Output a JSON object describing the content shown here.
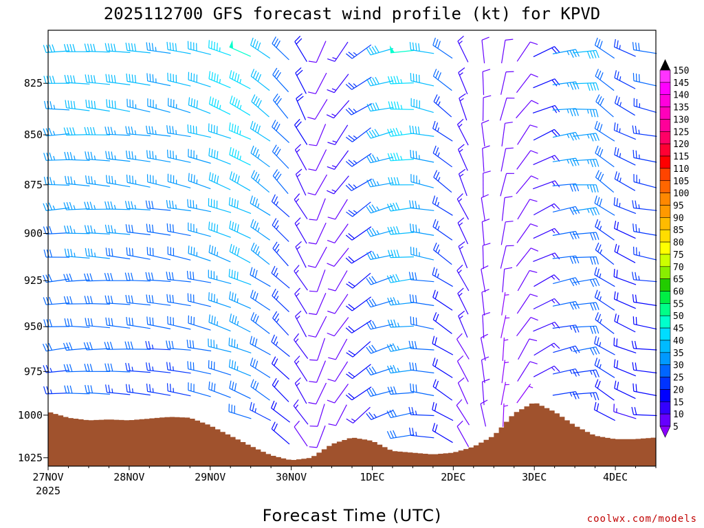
{
  "chart_data": {
    "type": "wind_barb_profile",
    "title": "2025112700 GFS forecast wind profile (kt) for KPVD",
    "xlabel": "Forecast Time (UTC)",
    "ylabel": "",
    "credit": "coolwx.com/models",
    "x_ticks": [
      "27NOV",
      "28NOV",
      "29NOV",
      "30NOV",
      "1DEC",
      "2DEC",
      "3DEC",
      "4DEC"
    ],
    "x_year": "2025",
    "x_range_days": [
      0,
      7.5
    ],
    "y_ticks": [
      825,
      850,
      875,
      900,
      925,
      950,
      975,
      1000,
      1025
    ],
    "y_range_hpa": [
      1030,
      800
    ],
    "colorbar_label_values": [
      5,
      10,
      15,
      20,
      25,
      30,
      35,
      40,
      45,
      50,
      55,
      60,
      65,
      70,
      75,
      80,
      85,
      90,
      95,
      100,
      105,
      110,
      115,
      120,
      125,
      130,
      135,
      140,
      145,
      150
    ],
    "colorbar_colors": [
      "#8a00ff",
      "#6600ff",
      "#3300ff",
      "#0000ff",
      "#0033ff",
      "#0066ff",
      "#0099ff",
      "#00bbff",
      "#00ddff",
      "#00ffcc",
      "#00ff88",
      "#00ee44",
      "#22cc00",
      "#88ee00",
      "#ccff00",
      "#ffff00",
      "#ffdd00",
      "#ffbb00",
      "#ff9900",
      "#ff8800",
      "#ff6600",
      "#ff4400",
      "#ff0000",
      "#ff0033",
      "#ff0066",
      "#ff0099",
      "#ff00bb",
      "#ff00dd",
      "#ff00ff",
      "#ff33ff"
    ],
    "colorbar_top_color": "#000000",
    "terrain_color": "#a0522d",
    "surface_pressure_series": {
      "x_days": [
        0.0,
        0.25,
        0.5,
        0.75,
        1.0,
        1.25,
        1.5,
        1.75,
        2.0,
        2.25,
        2.5,
        2.75,
        3.0,
        3.25,
        3.5,
        3.75,
        4.0,
        4.25,
        4.5,
        4.75,
        5.0,
        5.25,
        5.5,
        5.75,
        6.0,
        6.25,
        6.5,
        6.75,
        7.0,
        7.25,
        7.5
      ],
      "p_hpa": [
        998.0,
        1001.5,
        1003.0,
        1002.5,
        1003.0,
        1002.0,
        1001.0,
        1001.5,
        1006.0,
        1012.0,
        1018.0,
        1023.5,
        1026.5,
        1025.0,
        1017.0,
        1013.0,
        1015.0,
        1021.0,
        1022.0,
        1023.0,
        1022.0,
        1018.5,
        1012.0,
        999.0,
        992.5,
        998.0,
        1006.0,
        1012.0,
        1014.0,
        1014.0,
        1013.0
      ]
    },
    "wind_grid": {
      "levels_hpa": [
        810,
        825,
        837.5,
        850,
        862.5,
        875,
        887.5,
        900,
        912.5,
        925,
        937.5,
        950,
        962.5,
        975,
        987.5,
        1000,
        1012.5,
        1025
      ],
      "time_step_hours": 6,
      "time_count": 31,
      "speed_kt_by_time": [
        32,
        34,
        34,
        33,
        32,
        31,
        32,
        34,
        38,
        40,
        34,
        26,
        16,
        10,
        12,
        22,
        34,
        40,
        34,
        24,
        14,
        10,
        8,
        9,
        16,
        30,
        32,
        27,
        22,
        24,
        26
      ],
      "direction_deg_by_time": [
        262,
        266,
        268,
        270,
        272,
        274,
        276,
        280,
        285,
        290,
        300,
        310,
        325,
        200,
        210,
        230,
        250,
        260,
        275,
        300,
        330,
        350,
        5,
        30,
        60,
        75,
        80,
        300,
        290,
        275,
        270
      ]
    }
  }
}
